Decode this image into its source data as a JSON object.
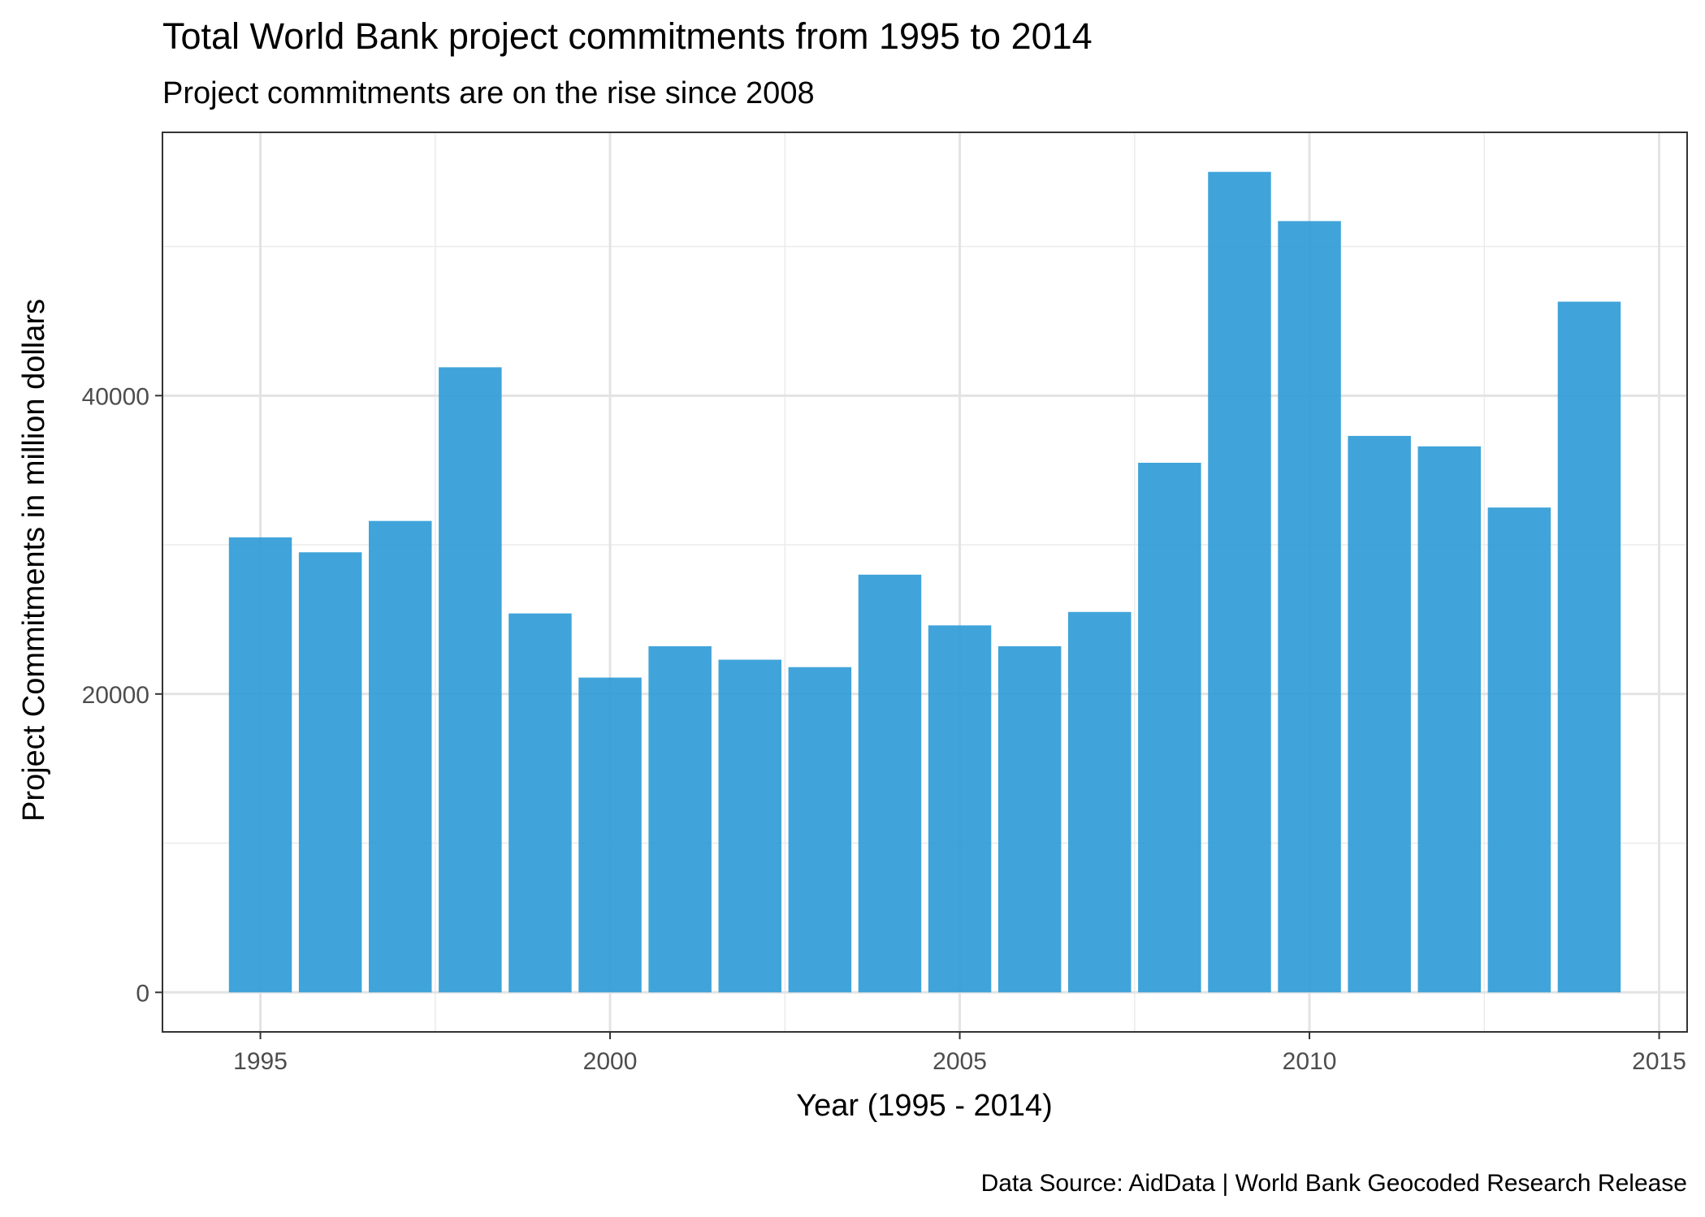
{
  "chart_data": {
    "type": "bar",
    "title": "Total World Bank project commitments from 1995 to 2014",
    "subtitle": "Project commitments are on the rise since 2008",
    "xlabel": "Year (1995 - 2014)",
    "ylabel": "Project Commitments in million dollars",
    "caption": "Data Source: AidData | World Bank Geocoded Research Release",
    "x": [
      1995,
      1996,
      1997,
      1998,
      1999,
      2000,
      2001,
      2002,
      2003,
      2004,
      2005,
      2006,
      2007,
      2008,
      2009,
      2010,
      2011,
      2012,
      2013,
      2014
    ],
    "values": [
      30500,
      29500,
      31600,
      41900,
      25400,
      21100,
      23200,
      22300,
      21800,
      28000,
      24600,
      23200,
      25500,
      35500,
      55000,
      51700,
      37300,
      36600,
      32500,
      46300
    ],
    "xlim": [
      1993.6,
      2015.4
    ],
    "ylim": [
      -2650,
      57650
    ],
    "xticks": [
      1995,
      2000,
      2005,
      2010,
      2015
    ],
    "yticks": [
      0,
      20000,
      40000
    ],
    "y_minor_gridlines": [
      10000,
      30000,
      50000
    ],
    "x_minor_gridlines": [
      1997.5,
      2002.5,
      2007.5,
      2012.5
    ],
    "bar_color": "#2B9AD6",
    "grid": true,
    "legend": "none"
  }
}
